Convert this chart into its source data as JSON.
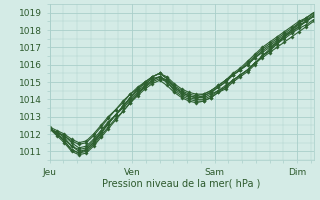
{
  "xlabel": "Pression niveau de la mer( hPa )",
  "ylim_min": 1010.5,
  "ylim_max": 1019.5,
  "xlim_min": 0,
  "xlim_max": 96,
  "yticks": [
    1011,
    1012,
    1013,
    1014,
    1015,
    1016,
    1017,
    1018,
    1019
  ],
  "xtick_positions": [
    0,
    30,
    60,
    90
  ],
  "xtick_labels": [
    "Jeu",
    "Ven",
    "Sam",
    "Dim"
  ],
  "bg_color": "#d4ebe6",
  "grid_color": "#aacfca",
  "line_color": "#2d6030",
  "line_width": 0.8,
  "marker": "D",
  "marker_size": 1.8,
  "series": [
    [
      1012.3,
      1012.1,
      1011.8,
      1011.3,
      1011.0,
      1011.1,
      1011.5,
      1012.1,
      1012.6,
      1013.1,
      1013.5,
      1013.9,
      1014.3,
      1014.7,
      1015.1,
      1015.3,
      1015.0,
      1014.5,
      1014.2,
      1014.0,
      1013.9,
      1013.9,
      1014.1,
      1014.4,
      1014.6,
      1015.0,
      1015.3,
      1015.6,
      1016.0,
      1016.5,
      1016.8,
      1017.2,
      1017.6,
      1018.0,
      1018.4,
      1018.7,
      1019.0
    ],
    [
      1012.3,
      1012.0,
      1011.6,
      1011.1,
      1010.9,
      1011.0,
      1011.4,
      1011.9,
      1012.4,
      1012.9,
      1013.3,
      1013.8,
      1014.2,
      1014.6,
      1014.9,
      1015.1,
      1014.8,
      1014.4,
      1014.1,
      1013.9,
      1013.8,
      1013.9,
      1014.1,
      1014.4,
      1014.7,
      1015.1,
      1015.4,
      1015.7,
      1016.1,
      1016.5,
      1016.9,
      1017.3,
      1017.6,
      1017.9,
      1018.2,
      1018.5,
      1018.8
    ],
    [
      1012.3,
      1012.1,
      1011.9,
      1011.5,
      1011.2,
      1011.3,
      1011.7,
      1012.2,
      1012.7,
      1013.1,
      1013.6,
      1014.0,
      1014.4,
      1014.7,
      1015.0,
      1015.2,
      1015.0,
      1014.6,
      1014.3,
      1014.1,
      1014.0,
      1014.0,
      1014.2,
      1014.5,
      1014.7,
      1015.1,
      1015.4,
      1015.7,
      1016.1,
      1016.5,
      1016.8,
      1017.2,
      1017.5,
      1017.8,
      1018.1,
      1018.3,
      1018.6
    ],
    [
      1012.4,
      1012.2,
      1012.0,
      1011.7,
      1011.5,
      1011.6,
      1012.0,
      1012.5,
      1013.0,
      1013.4,
      1013.9,
      1014.3,
      1014.6,
      1014.9,
      1015.2,
      1015.3,
      1015.1,
      1014.7,
      1014.4,
      1014.2,
      1014.1,
      1014.1,
      1014.3,
      1014.5,
      1014.8,
      1015.1,
      1015.4,
      1015.7,
      1016.1,
      1016.4,
      1016.7,
      1017.0,
      1017.3,
      1017.6,
      1017.9,
      1018.2,
      1018.5
    ],
    [
      1012.3,
      1011.9,
      1011.5,
      1011.0,
      1010.8,
      1010.9,
      1011.3,
      1011.8,
      1012.3,
      1012.8,
      1013.3,
      1013.8,
      1014.3,
      1014.8,
      1015.3,
      1015.5,
      1015.2,
      1014.7,
      1014.4,
      1014.2,
      1014.1,
      1014.2,
      1014.4,
      1014.7,
      1015.0,
      1015.4,
      1015.7,
      1016.1,
      1016.5,
      1016.9,
      1017.2,
      1017.5,
      1017.8,
      1018.1,
      1018.4,
      1018.6,
      1018.9
    ],
    [
      1012.3,
      1012.0,
      1011.7,
      1011.3,
      1011.1,
      1011.2,
      1011.6,
      1012.1,
      1012.6,
      1013.1,
      1013.6,
      1014.1,
      1014.5,
      1014.8,
      1015.1,
      1015.3,
      1015.1,
      1014.7,
      1014.4,
      1014.2,
      1014.1,
      1014.2,
      1014.4,
      1014.7,
      1015.0,
      1015.4,
      1015.7,
      1016.0,
      1016.4,
      1016.8,
      1017.1,
      1017.4,
      1017.7,
      1018.0,
      1018.3,
      1018.5,
      1018.8
    ],
    [
      1012.3,
      1012.0,
      1011.6,
      1011.1,
      1010.9,
      1011.1,
      1011.5,
      1012.0,
      1012.6,
      1013.1,
      1013.6,
      1014.1,
      1014.6,
      1015.0,
      1015.3,
      1015.5,
      1015.2,
      1014.8,
      1014.5,
      1014.3,
      1014.2,
      1014.3,
      1014.5,
      1014.8,
      1015.1,
      1015.5,
      1015.8,
      1016.2,
      1016.6,
      1017.0,
      1017.3,
      1017.6,
      1017.9,
      1018.2,
      1018.5,
      1018.7,
      1019.0
    ],
    [
      1012.3,
      1012.1,
      1011.9,
      1011.6,
      1011.4,
      1011.5,
      1011.9,
      1012.4,
      1012.9,
      1013.4,
      1013.8,
      1014.3,
      1014.7,
      1015.0,
      1015.3,
      1015.5,
      1015.3,
      1014.9,
      1014.6,
      1014.4,
      1014.3,
      1014.3,
      1014.5,
      1014.8,
      1015.1,
      1015.4,
      1015.7,
      1016.0,
      1016.4,
      1016.7,
      1017.0,
      1017.3,
      1017.6,
      1017.9,
      1018.2,
      1018.5,
      1018.8
    ]
  ]
}
